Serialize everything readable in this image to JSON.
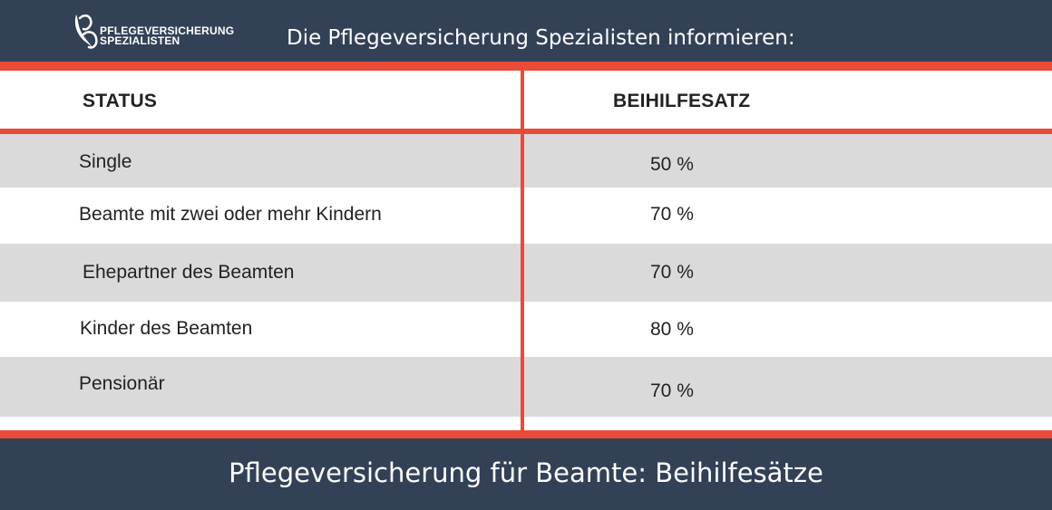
{
  "header": {
    "logo_line1": "PFLEGEVERSICHERUNG",
    "logo_line2": "SPEZIALISTEN",
    "title": "Die Pflegeversicherung Spezialisten informieren:"
  },
  "table": {
    "columns": [
      "STATUS",
      "BEIHILFESATZ"
    ],
    "rows": [
      {
        "status": "Single",
        "rate": "50 %"
      },
      {
        "status": "Beamte mit zwei oder mehr Kindern",
        "rate": "70 %"
      },
      {
        "status": "Ehepartner des Beamten",
        "rate": "70 %"
      },
      {
        "status": "Kinder des Beamten",
        "rate": "80 %"
      },
      {
        "status": "Pensionär",
        "rate": "70 %"
      }
    ]
  },
  "footer": {
    "title": "Pflegeversicherung für Beamte: Beihilfesätze"
  },
  "colors": {
    "navy": "#334157",
    "accent_red": "#e84b37",
    "row_gray": "#dadada"
  }
}
